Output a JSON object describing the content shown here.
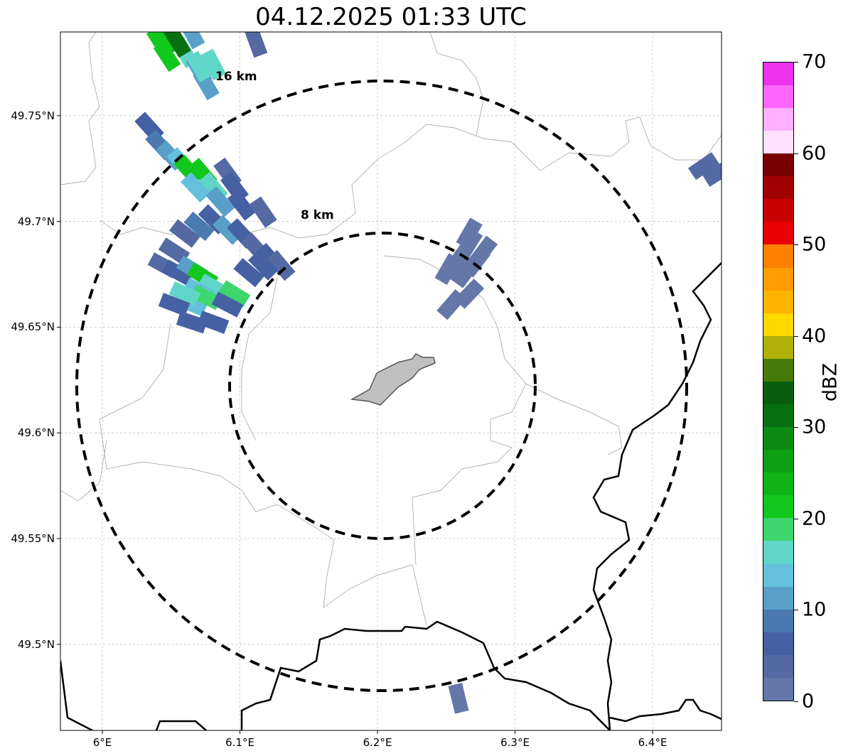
{
  "title": "04.12.2025 01:33 UTC",
  "ring_labels": [
    "16 km",
    "8 km"
  ],
  "colorbar": {
    "label": "dBZ",
    "ticks": [
      "0",
      "10",
      "20",
      "30",
      "40",
      "50",
      "60",
      "70"
    ],
    "colors": [
      "#6577a8",
      "#5569a3",
      "#4560a3",
      "#4a7ab0",
      "#58a0c8",
      "#64c0dc",
      "#60d6c8",
      "#3ed66c",
      "#12c81c",
      "#10b418",
      "#0ea014",
      "#0c8c12",
      "#087010",
      "#065e0c",
      "#487a0a",
      "#b0b008",
      "#ffd800",
      "#ffb400",
      "#ff9c00",
      "#ff8000",
      "#e80000",
      "#c80000",
      "#a00000",
      "#780000",
      "#ffe0ff",
      "#ffb0ff",
      "#ff66ff",
      "#ee33ee"
    ]
  },
  "chart_data": {
    "type": "map",
    "title": "04.12.2025 01:33 UTC",
    "x_ticks": [
      "6°E",
      "6.1°E",
      "6.2°E",
      "6.3°E",
      "6.4°E"
    ],
    "y_ticks": [
      "49.75°N",
      "49.7°N",
      "49.65°N",
      "49.6°N",
      "49.55°N",
      "49.5°N"
    ],
    "lon_range": [
      5.9695,
      6.4501
    ],
    "lat_range": [
      49.4593,
      49.7896
    ],
    "radar_center": {
      "lon": 6.2031,
      "lat": 49.6228
    },
    "rings_km": [
      8,
      16
    ],
    "cells": [
      {
        "lon": 6.0481,
        "lat": 49.7866,
        "dbz": 27
      },
      {
        "lon": 6.047,
        "lat": 49.7782,
        "dbz": 20
      },
      {
        "lon": 6.0599,
        "lat": 49.7799,
        "dbz": 15
      },
      {
        "lon": 6.0703,
        "lat": 49.7715,
        "dbz": 12
      },
      {
        "lon": 6.0755,
        "lat": 49.7648,
        "dbz": 10
      },
      {
        "lon": 6.0419,
        "lat": 49.7849,
        "dbz": 22
      },
      {
        "lon": 6.0548,
        "lat": 49.7849,
        "dbz": 30
      },
      {
        "lon": 6.0651,
        "lat": 49.7889,
        "dbz": 10
      },
      {
        "lon": 6.0703,
        "lat": 49.7732,
        "dbz": 17
      },
      {
        "lon": 6.0806,
        "lat": 49.7742,
        "dbz": 17
      },
      {
        "lon": 6.0341,
        "lat": 49.7446,
        "dbz": 5
      },
      {
        "lon": 6.0419,
        "lat": 49.7362,
        "dbz": 8
      },
      {
        "lon": 6.0496,
        "lat": 49.7312,
        "dbz": 10
      },
      {
        "lon": 6.0574,
        "lat": 49.7279,
        "dbz": 13
      },
      {
        "lon": 6.0625,
        "lat": 49.7245,
        "dbz": 20
      },
      {
        "lon": 6.0729,
        "lat": 49.7228,
        "dbz": 22
      },
      {
        "lon": 6.0806,
        "lat": 49.7161,
        "dbz": 17
      },
      {
        "lon": 6.0677,
        "lat": 49.7161,
        "dbz": 13
      },
      {
        "lon": 6.091,
        "lat": 49.7228,
        "dbz": 3
      },
      {
        "lon": 6.0961,
        "lat": 49.7161,
        "dbz": 5
      },
      {
        "lon": 6.0858,
        "lat": 49.7094,
        "dbz": 10
      },
      {
        "lon": 6.1013,
        "lat": 49.7077,
        "dbz": 5
      },
      {
        "lon": 6.1168,
        "lat": 49.7044,
        "dbz": 3
      },
      {
        "lon": 6.0599,
        "lat": 49.6943,
        "dbz": 3
      },
      {
        "lon": 6.0703,
        "lat": 49.6977,
        "dbz": 8
      },
      {
        "lon": 6.0806,
        "lat": 49.701,
        "dbz": 5
      },
      {
        "lon": 6.091,
        "lat": 49.696,
        "dbz": 10
      },
      {
        "lon": 6.1013,
        "lat": 49.6943,
        "dbz": 5
      },
      {
        "lon": 6.1116,
        "lat": 49.6876,
        "dbz": 3
      },
      {
        "lon": 6.122,
        "lat": 49.6826,
        "dbz": 5
      },
      {
        "lon": 6.1297,
        "lat": 49.6792,
        "dbz": 3
      },
      {
        "lon": 6.0522,
        "lat": 49.6859,
        "dbz": 3
      },
      {
        "lon": 6.0444,
        "lat": 49.6792,
        "dbz": 3
      },
      {
        "lon": 6.0548,
        "lat": 49.6758,
        "dbz": 5
      },
      {
        "lon": 6.0651,
        "lat": 49.6775,
        "dbz": 10
      },
      {
        "lon": 6.0729,
        "lat": 49.6742,
        "dbz": 20
      },
      {
        "lon": 6.0806,
        "lat": 49.6691,
        "dbz": 17
      },
      {
        "lon": 6.0703,
        "lat": 49.6674,
        "dbz": 13
      },
      {
        "lon": 6.0651,
        "lat": 49.6607,
        "dbz": 13
      },
      {
        "lon": 6.0755,
        "lat": 49.6641,
        "dbz": 18
      },
      {
        "lon": 6.0599,
        "lat": 49.6658,
        "dbz": 15
      },
      {
        "lon": 6.0961,
        "lat": 49.6658,
        "dbz": 18
      },
      {
        "lon": 6.091,
        "lat": 49.6607,
        "dbz": 5
      },
      {
        "lon": 6.0522,
        "lat": 49.6607,
        "dbz": 5
      },
      {
        "lon": 6.0651,
        "lat": 49.6523,
        "dbz": 5
      },
      {
        "lon": 6.0806,
        "lat": 49.6523,
        "dbz": 5
      },
      {
        "lon": 6.1065,
        "lat": 49.6758,
        "dbz": 5
      },
      {
        "lon": 6.1168,
        "lat": 49.6792,
        "dbz": 5
      },
      {
        "lon": 6.2667,
        "lat": 49.6943,
        "dbz": 2
      },
      {
        "lon": 6.2667,
        "lat": 49.6893,
        "dbz": 1
      },
      {
        "lon": 6.2615,
        "lat": 49.6842,
        "dbz": 2
      },
      {
        "lon": 6.2563,
        "lat": 49.6792,
        "dbz": 1
      },
      {
        "lon": 6.277,
        "lat": 49.6859,
        "dbz": 1
      },
      {
        "lon": 6.2718,
        "lat": 49.6809,
        "dbz": 2
      },
      {
        "lon": 6.2512,
        "lat": 49.6775,
        "dbz": 2
      },
      {
        "lon": 6.2641,
        "lat": 49.6758,
        "dbz": 1
      },
      {
        "lon": 6.2537,
        "lat": 49.6607,
        "dbz": 1
      },
      {
        "lon": 6.2667,
        "lat": 49.6658,
        "dbz": 2
      },
      {
        "lon": 6.4372,
        "lat": 49.7262,
        "dbz": 3
      },
      {
        "lon": 6.4475,
        "lat": 49.7228,
        "dbz": 3
      },
      {
        "lon": 6.2589,
        "lat": 49.4745,
        "dbz": 1
      },
      {
        "lon": 6.1116,
        "lat": 49.7849,
        "dbz": 3
      }
    ]
  }
}
